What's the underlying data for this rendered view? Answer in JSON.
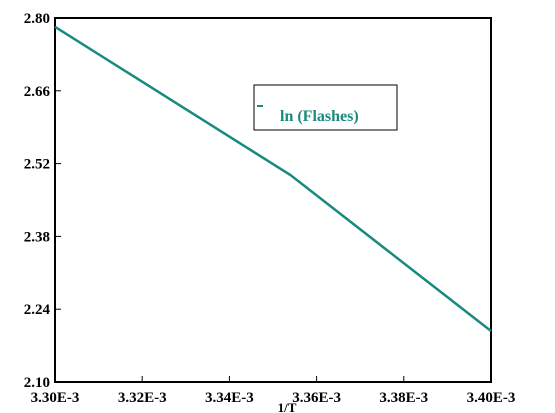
{
  "chart_data": {
    "type": "line",
    "title": "",
    "xlabel": "1/T",
    "ylabel": "",
    "xlim": [
      0.0033,
      0.0034
    ],
    "ylim": [
      2.1,
      2.8
    ],
    "x_ticks": [
      0.0033,
      0.00332,
      0.00334,
      0.00336,
      0.00338,
      0.0034
    ],
    "x_tick_labels": [
      "3.30E-3",
      "3.32E-3",
      "3.34E-3",
      "3.36E-3",
      "3.38E-3",
      "3.40E-3"
    ],
    "y_ticks": [
      2.1,
      2.24,
      2.38,
      2.52,
      2.66,
      2.8
    ],
    "y_tick_labels": [
      "2.10",
      "2.24",
      "2.38",
      "2.52",
      "2.66",
      "2.80"
    ],
    "grid": false,
    "legend_position": "top-right",
    "series": [
      {
        "name": "ln (Flashes)",
        "color": "#188a7e",
        "x": [
          0.0033,
          0.003354,
          0.0034
        ],
        "y": [
          2.783,
          2.498,
          2.198
        ]
      }
    ]
  }
}
